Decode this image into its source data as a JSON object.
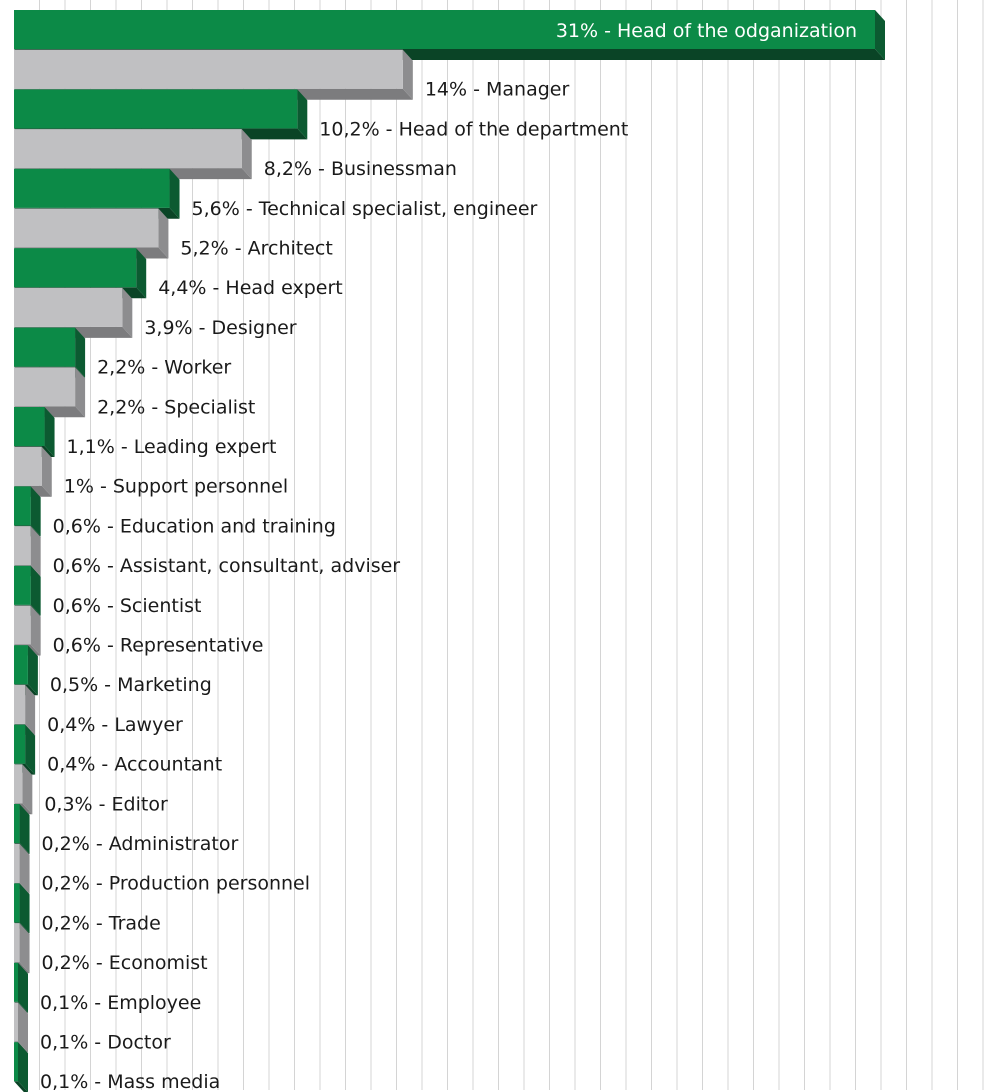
{
  "chart_data": {
    "type": "bar",
    "orientation": "horizontal",
    "style": "3d",
    "colors": {
      "green": "#0c8a47",
      "green_dark": "#0c5a31",
      "green_darker": "#0a4426",
      "gray": "#c0c0c2",
      "gray_dark": "#8d8d8f",
      "gray_darker": "#7c7c7e",
      "grid": "#d4d4d4",
      "text": "#1a1a1a",
      "text_inside": "#ffffff"
    },
    "grid": true,
    "xlim": [
      0,
      31
    ],
    "categories": [
      "Head of the odganization",
      "Manager",
      "Head of the department",
      "Businessman",
      "Technical specialist, engineer",
      "Architect",
      "Head expert",
      "Designer",
      "Worker",
      "Specialist",
      "Leading expert",
      "Support personnel",
      "Education and training",
      "Assistant, consultant, adviser",
      "Scientist",
      "Representative",
      "Marketing",
      "Lawyer",
      "Accountant",
      "Editor",
      "Administrator",
      "Production personnel",
      "Trade",
      "Economist",
      "Employee",
      "Doctor",
      "Mass media"
    ],
    "values": [
      31,
      14,
      10.2,
      8.2,
      5.6,
      5.2,
      4.4,
      3.9,
      2.2,
      2.2,
      1.1,
      1,
      0.6,
      0.6,
      0.6,
      0.6,
      0.5,
      0.4,
      0.4,
      0.3,
      0.2,
      0.2,
      0.2,
      0.2,
      0.1,
      0.1,
      0.1
    ],
    "labels": [
      "31% - Head of the odganization",
      "14% - Manager",
      "10,2% - Head of the department",
      "8,2% - Businessman",
      "5,6% - Technical specialist, engineer",
      "5,2% - Architect",
      "4,4% - Head expert",
      "3,9% - Designer",
      "2,2% - Worker",
      "2,2% - Specialist",
      "1,1% - Leading expert",
      "1% - Support personnel",
      "0,6% - Education and training",
      "0,6% - Assistant, consultant, adviser",
      "0,6% - Scientist",
      "0,6% - Representative",
      "0,5% - Marketing",
      "0,4% - Lawyer",
      "0,4% - Accountant",
      "0,3% - Editor",
      "0,2% - Administrator",
      "0,2% - Production personnel",
      "0,2% - Trade",
      "0,2% - Economist",
      "0,1% - Employee",
      "0,1% - Doctor",
      "0,1% - Mass media"
    ]
  }
}
